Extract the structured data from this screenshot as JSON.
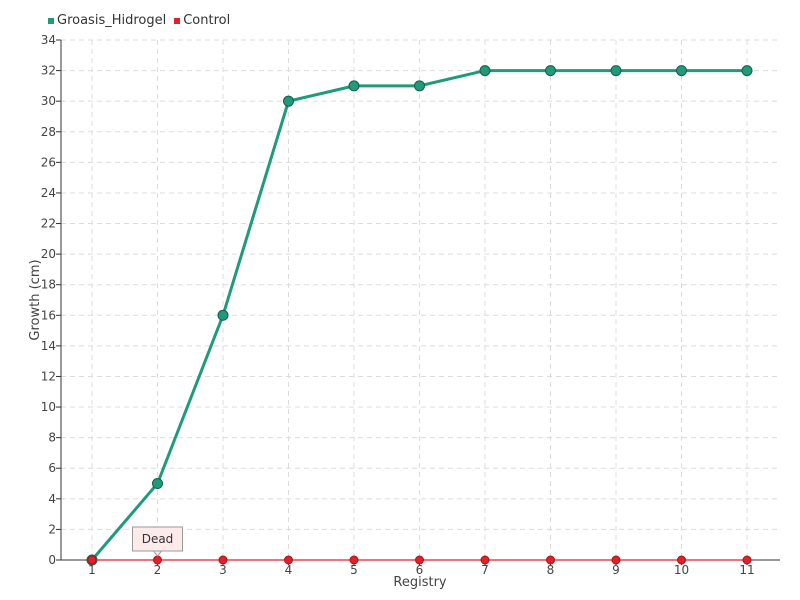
{
  "chart_data": {
    "type": "line",
    "title": "",
    "xlabel": "Registry",
    "ylabel": "Growth (cm)",
    "categories": [
      "1",
      "2",
      "3",
      "4",
      "5",
      "6",
      "7",
      "8",
      "9",
      "10",
      "11"
    ],
    "ylim": [
      0,
      34
    ],
    "ytick_step": 2,
    "grid": true,
    "legend_position": "top-left",
    "series": [
      {
        "name": "Groasis_Hidrogel",
        "color": "#1f9a7a",
        "values": [
          0,
          5,
          16,
          30,
          31,
          31,
          32,
          32,
          32,
          32,
          32
        ]
      },
      {
        "name": "Control",
        "color": "#e0202a",
        "values": [
          0,
          0,
          0,
          0,
          0,
          0,
          0,
          0,
          0,
          0,
          0
        ]
      }
    ],
    "annotation": {
      "text": "Dead",
      "category": "2",
      "series": "Control"
    }
  }
}
